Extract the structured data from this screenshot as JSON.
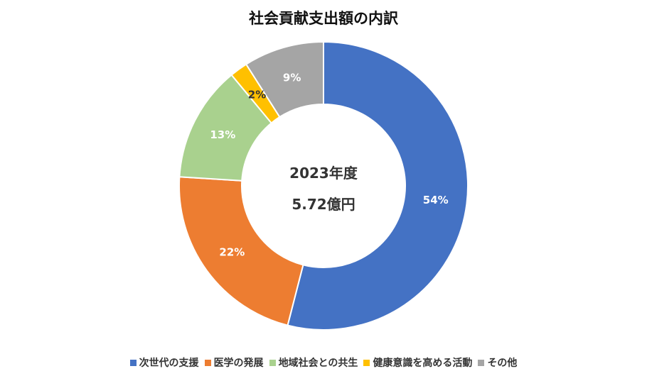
{
  "chart_data": {
    "type": "pie",
    "variant": "donut",
    "title": "社会貢献支出額の内訳",
    "center_text": [
      "2023年度",
      "5.72億円"
    ],
    "categories": [
      "次世代の支援",
      "医学の発展",
      "地域社会との共生",
      "健康意識を高める活動",
      "その他"
    ],
    "values": [
      54,
      22,
      13,
      2,
      9
    ],
    "data_labels": [
      "54%",
      "22%",
      "13%",
      "2%",
      "9%"
    ],
    "colors": [
      "#4472C4",
      "#ED7D31",
      "#A9D18E",
      "#FFC000",
      "#A5A5A5"
    ],
    "legend_position": "bottom"
  }
}
